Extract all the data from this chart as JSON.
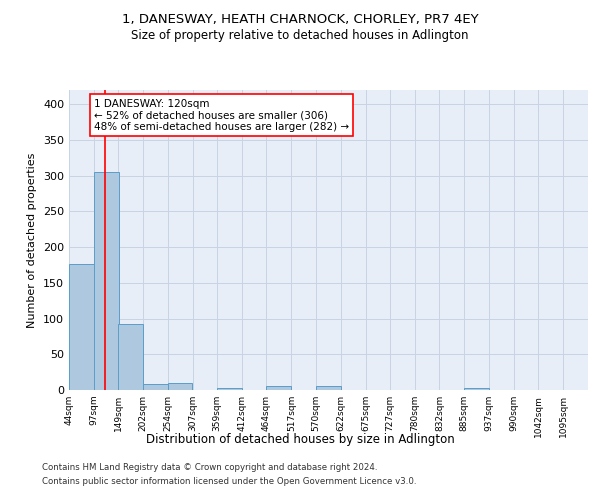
{
  "title1": "1, DANESWAY, HEATH CHARNOCK, CHORLEY, PR7 4EY",
  "title2": "Size of property relative to detached houses in Adlington",
  "xlabel": "Distribution of detached houses by size in Adlington",
  "ylabel": "Number of detached properties",
  "footer1": "Contains HM Land Registry data © Crown copyright and database right 2024.",
  "footer2": "Contains public sector information licensed under the Open Government Licence v3.0.",
  "bin_labels": [
    "44sqm",
    "97sqm",
    "149sqm",
    "202sqm",
    "254sqm",
    "307sqm",
    "359sqm",
    "412sqm",
    "464sqm",
    "517sqm",
    "570sqm",
    "622sqm",
    "675sqm",
    "727sqm",
    "780sqm",
    "832sqm",
    "885sqm",
    "937sqm",
    "990sqm",
    "1042sqm",
    "1095sqm"
  ],
  "bin_edges": [
    44,
    97,
    149,
    202,
    254,
    307,
    359,
    412,
    464,
    517,
    570,
    622,
    675,
    727,
    780,
    832,
    885,
    937,
    990,
    1042,
    1095
  ],
  "bar_heights": [
    176,
    305,
    93,
    8,
    10,
    0,
    3,
    0,
    5,
    0,
    5,
    0,
    0,
    0,
    0,
    0,
    3,
    0,
    0,
    0,
    0
  ],
  "bar_color": "#aec8e0",
  "bar_edge_color": "#5a9ec9",
  "grid_color": "#c8d4e4",
  "bg_color": "#e8eef8",
  "red_line_x": 120,
  "annotation_line1": "1 DANESWAY: 120sqm",
  "annotation_line2": "← 52% of detached houses are smaller (306)",
  "annotation_line3": "48% of semi-detached houses are larger (282) →",
  "ylim": [
    0,
    420
  ],
  "yticks": [
    0,
    50,
    100,
    150,
    200,
    250,
    300,
    350,
    400
  ]
}
